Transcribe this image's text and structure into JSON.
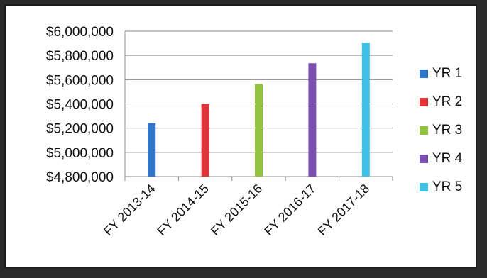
{
  "chart_data": {
    "type": "bar",
    "categories": [
      "FY 2013-14",
      "FY 2014-15",
      "FY 2015-16",
      "FY 2016-17",
      "FY 2017-18"
    ],
    "series": [
      {
        "name": "YR 1",
        "color": "#2f75c8",
        "values": [
          5240000,
          null,
          null,
          null,
          null
        ]
      },
      {
        "name": "YR 2",
        "color": "#e0353b",
        "values": [
          null,
          5400000,
          null,
          null,
          null
        ]
      },
      {
        "name": "YR 3",
        "color": "#93c23f",
        "values": [
          null,
          null,
          5565000,
          null,
          null
        ]
      },
      {
        "name": "YR 4",
        "color": "#7b4fb0",
        "values": [
          null,
          null,
          null,
          5735000,
          null
        ]
      },
      {
        "name": "YR 5",
        "color": "#3fc1e6",
        "values": [
          null,
          null,
          null,
          null,
          5905000
        ]
      }
    ],
    "ylim": [
      4800000,
      6000000
    ],
    "yticks": [
      "$6,000,000",
      "$5,800,000",
      "$5,600,000",
      "$5,400,000",
      "$5,200,000",
      "$5,000,000",
      "$4,800,000"
    ],
    "ytick_values": [
      6000000,
      5800000,
      5600000,
      5400000,
      5200000,
      5000000,
      4800000
    ],
    "grid": true,
    "legend": "right"
  }
}
